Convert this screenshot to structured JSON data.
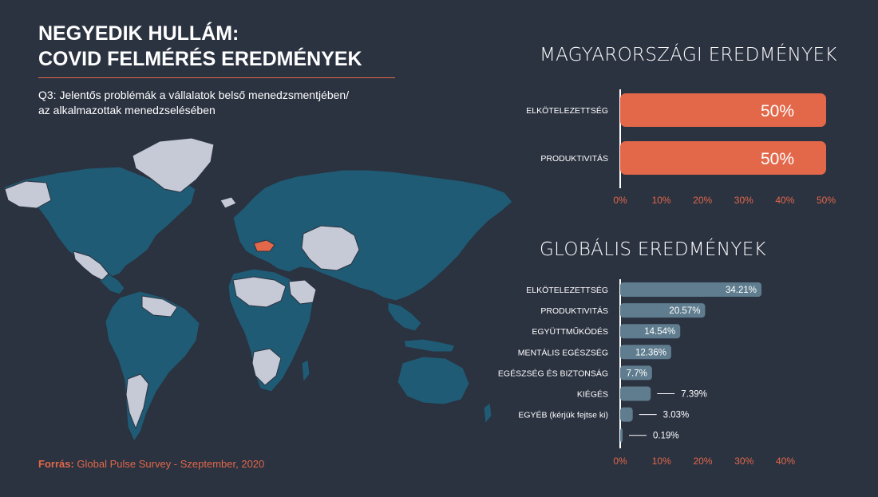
{
  "header": {
    "title_line1": "NEGYEDIK HULLÁM:",
    "title_line2": "COVID FELMÉRÉS EREDMÉNYEK",
    "question_line1": "Q3: Jelentős problémák a vállalatok belső menedzsmentjében/",
    "question_line2": "az alkalmazottak menedzselésében"
  },
  "footer": {
    "source_label": "Forrás:",
    "source_text": " Global Pulse Survey - Szeptember, 2020"
  },
  "colors": {
    "background": "#2b3240",
    "accent": "#e3684a",
    "global_bar": "#5f7d8e",
    "map_land": "#1f5b74",
    "map_light": "#c6c9d6",
    "map_highlight": "#e3684a"
  },
  "chart_data": [
    {
      "type": "bar",
      "orientation": "horizontal",
      "title": "MAGYARORSZÁGI EREDMÉNYEK",
      "categories": [
        "ELKÖTELEZETTSÉG",
        "PRODUKTIVITÁS"
      ],
      "values": [
        50,
        50
      ],
      "value_labels": [
        "50%",
        "50%"
      ],
      "xlim": [
        0,
        50
      ],
      "ticks": [
        "0%",
        "10%",
        "20%",
        "30%",
        "40%",
        "50%"
      ],
      "grid": false
    },
    {
      "type": "bar",
      "orientation": "horizontal",
      "title": "GLOBÁLIS EREDMÉNYEK",
      "categories": [
        "ELKÖTELEZETTSÉG",
        "PRODUKTIVITÁS",
        "EGYÜTTMŰKÖDÉS",
        "MENTÁLIS EGÉSZSÉG",
        "EGÉSZSÉG ÉS BIZTONSÁG",
        "KIÉGÉS",
        "EGYÉB (kérjük fejtse ki)",
        ""
      ],
      "values": [
        34.21,
        20.57,
        14.54,
        12.36,
        7.7,
        7.39,
        3.03,
        0.19
      ],
      "value_labels": [
        "34.21%",
        "20.57%",
        "14.54%",
        "12.36%",
        "7.7%",
        "7.39%",
        "3.03%",
        "0.19%"
      ],
      "xlim": [
        0,
        40
      ],
      "ticks": [
        "0%",
        "10%",
        "20%",
        "30%",
        "40%"
      ],
      "grid": false
    }
  ]
}
